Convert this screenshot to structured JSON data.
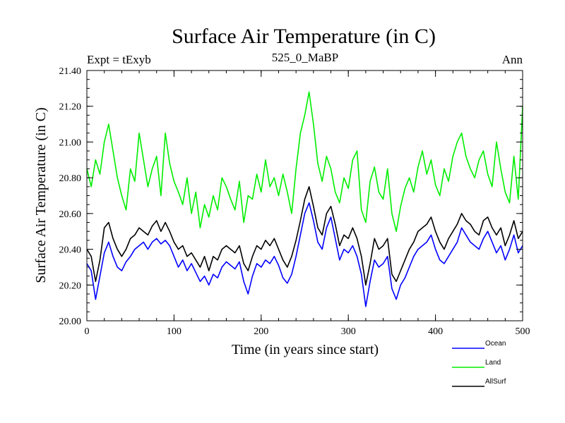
{
  "chart_data": {
    "type": "line",
    "title": "Surface Air Temperature (in C)",
    "subtitle_left": "Expt = tExyb",
    "subtitle_center": "525_0_MaBP",
    "subtitle_right": "Ann",
    "xlabel": "Time (in years since start)",
    "ylabel": "Surface Air Temperature (in C)",
    "xlim": [
      0,
      500
    ],
    "ylim": [
      20.0,
      21.4
    ],
    "xticks": [
      0,
      100,
      200,
      300,
      400,
      500
    ],
    "yticks": [
      20.0,
      20.2,
      20.4,
      20.6,
      20.8,
      21.0,
      21.2,
      21.4
    ],
    "ytick_labels": [
      "20.00",
      "20.20",
      "20.40",
      "20.60",
      "20.80",
      "21.00",
      "21.20",
      "21.40"
    ],
    "xtick_labels": [
      "0",
      "100",
      "200",
      "300",
      "400",
      "500"
    ],
    "grid": false,
    "legend_position": "bottom-right",
    "series": [
      {
        "name": "Ocean",
        "color": "#0000ff",
        "x": [
          0,
          5,
          10,
          15,
          20,
          25,
          30,
          35,
          40,
          45,
          50,
          55,
          60,
          65,
          70,
          75,
          80,
          85,
          90,
          95,
          100,
          105,
          110,
          115,
          120,
          125,
          130,
          135,
          140,
          145,
          150,
          155,
          160,
          165,
          170,
          175,
          180,
          185,
          190,
          195,
          200,
          205,
          210,
          215,
          220,
          225,
          230,
          235,
          240,
          245,
          250,
          255,
          260,
          265,
          270,
          275,
          280,
          285,
          290,
          295,
          300,
          305,
          310,
          315,
          320,
          325,
          330,
          335,
          340,
          345,
          350,
          355,
          360,
          365,
          370,
          375,
          380,
          385,
          390,
          395,
          400,
          405,
          410,
          415,
          420,
          425,
          430,
          435,
          440,
          445,
          450,
          455,
          460,
          465,
          470,
          475,
          480,
          485,
          490,
          495,
          500
        ],
        "values": [
          20.32,
          20.28,
          20.12,
          20.25,
          20.38,
          20.44,
          20.36,
          20.3,
          20.28,
          20.33,
          20.36,
          20.4,
          20.42,
          20.44,
          20.4,
          20.44,
          20.46,
          20.43,
          20.45,
          20.42,
          20.36,
          20.3,
          20.34,
          20.28,
          20.32,
          20.27,
          20.22,
          20.25,
          20.2,
          20.26,
          20.24,
          20.3,
          20.33,
          20.31,
          20.29,
          20.33,
          20.22,
          20.15,
          20.25,
          20.32,
          20.3,
          20.34,
          20.32,
          20.36,
          20.31,
          20.24,
          20.21,
          20.26,
          20.36,
          20.48,
          20.6,
          20.66,
          20.56,
          20.44,
          20.4,
          20.52,
          20.58,
          20.46,
          20.34,
          20.4,
          20.38,
          20.42,
          20.36,
          20.26,
          20.08,
          20.22,
          20.34,
          20.3,
          20.32,
          20.36,
          20.18,
          20.12,
          20.2,
          20.24,
          20.3,
          20.36,
          20.4,
          20.42,
          20.44,
          20.48,
          20.4,
          20.34,
          20.32,
          20.36,
          20.4,
          20.44,
          20.52,
          20.48,
          20.44,
          20.42,
          20.4,
          20.46,
          20.5,
          20.44,
          20.38,
          20.42,
          20.34,
          20.4,
          20.48,
          20.38,
          20.42
        ]
      },
      {
        "name": "Land",
        "color": "#00ee00",
        "x": [
          0,
          5,
          10,
          15,
          20,
          25,
          30,
          35,
          40,
          45,
          50,
          55,
          60,
          65,
          70,
          75,
          80,
          85,
          90,
          95,
          100,
          105,
          110,
          115,
          120,
          125,
          130,
          135,
          140,
          145,
          150,
          155,
          160,
          165,
          170,
          175,
          180,
          185,
          190,
          195,
          200,
          205,
          210,
          215,
          220,
          225,
          230,
          235,
          240,
          245,
          250,
          255,
          260,
          265,
          270,
          275,
          280,
          285,
          290,
          295,
          300,
          305,
          310,
          315,
          320,
          325,
          330,
          335,
          340,
          345,
          350,
          355,
          360,
          365,
          370,
          375,
          380,
          385,
          390,
          395,
          400,
          405,
          410,
          415,
          420,
          425,
          430,
          435,
          440,
          445,
          450,
          455,
          460,
          465,
          470,
          475,
          480,
          485,
          490,
          495,
          500
        ],
        "values": [
          20.85,
          20.75,
          20.9,
          20.82,
          21.0,
          21.1,
          20.95,
          20.8,
          20.7,
          20.62,
          20.85,
          20.78,
          21.05,
          20.9,
          20.75,
          20.85,
          20.92,
          20.7,
          21.05,
          20.88,
          20.78,
          20.72,
          20.65,
          20.8,
          20.6,
          20.72,
          20.52,
          20.65,
          20.58,
          20.7,
          20.62,
          20.8,
          20.75,
          20.68,
          20.62,
          20.78,
          20.55,
          20.7,
          20.68,
          20.82,
          20.72,
          20.9,
          20.75,
          20.8,
          20.7,
          20.82,
          20.72,
          20.6,
          20.85,
          21.05,
          21.15,
          21.28,
          21.1,
          20.88,
          20.78,
          20.92,
          20.85,
          20.72,
          20.66,
          20.8,
          20.74,
          20.9,
          20.95,
          20.62,
          20.55,
          20.78,
          20.86,
          20.72,
          20.68,
          20.85,
          20.6,
          20.5,
          20.64,
          20.74,
          20.8,
          20.72,
          20.86,
          20.95,
          20.82,
          20.9,
          20.76,
          20.7,
          20.85,
          20.78,
          20.92,
          21.0,
          21.05,
          20.92,
          20.85,
          20.8,
          20.9,
          20.95,
          20.82,
          20.75,
          21.0,
          20.85,
          20.72,
          20.66,
          20.92,
          20.68,
          21.2
        ]
      },
      {
        "name": "AllSurf",
        "color": "#000000",
        "x": [
          0,
          5,
          10,
          15,
          20,
          25,
          30,
          35,
          40,
          45,
          50,
          55,
          60,
          65,
          70,
          75,
          80,
          85,
          90,
          95,
          100,
          105,
          110,
          115,
          120,
          125,
          130,
          135,
          140,
          145,
          150,
          155,
          160,
          165,
          170,
          175,
          180,
          185,
          190,
          195,
          200,
          205,
          210,
          215,
          220,
          225,
          230,
          235,
          240,
          245,
          250,
          255,
          260,
          265,
          270,
          275,
          280,
          285,
          290,
          295,
          300,
          305,
          310,
          315,
          320,
          325,
          330,
          335,
          340,
          345,
          350,
          355,
          360,
          365,
          370,
          375,
          380,
          385,
          390,
          395,
          400,
          405,
          410,
          415,
          420,
          425,
          430,
          435,
          440,
          445,
          450,
          455,
          460,
          465,
          470,
          475,
          480,
          485,
          490,
          495,
          500
        ],
        "values": [
          20.4,
          20.36,
          20.22,
          20.34,
          20.52,
          20.55,
          20.46,
          20.4,
          20.36,
          20.4,
          20.46,
          20.48,
          20.52,
          20.5,
          20.48,
          20.53,
          20.56,
          20.5,
          20.55,
          20.5,
          20.44,
          20.4,
          20.42,
          20.36,
          20.38,
          20.34,
          20.3,
          20.36,
          20.28,
          20.36,
          20.34,
          20.4,
          20.42,
          20.4,
          20.38,
          20.42,
          20.32,
          20.28,
          20.36,
          20.42,
          20.4,
          20.45,
          20.42,
          20.46,
          20.4,
          20.34,
          20.3,
          20.36,
          20.45,
          20.56,
          20.68,
          20.75,
          20.64,
          20.52,
          20.48,
          20.6,
          20.64,
          20.54,
          20.42,
          20.48,
          20.46,
          20.52,
          20.46,
          20.36,
          20.2,
          20.32,
          20.46,
          20.4,
          20.42,
          20.46,
          20.26,
          20.22,
          20.28,
          20.34,
          20.4,
          20.44,
          20.5,
          20.52,
          20.54,
          20.58,
          20.5,
          20.44,
          20.4,
          20.46,
          20.5,
          20.54,
          20.6,
          20.56,
          20.54,
          20.5,
          20.48,
          20.56,
          20.58,
          20.52,
          20.48,
          20.52,
          20.42,
          20.48,
          20.56,
          20.46,
          20.5
        ]
      }
    ]
  }
}
